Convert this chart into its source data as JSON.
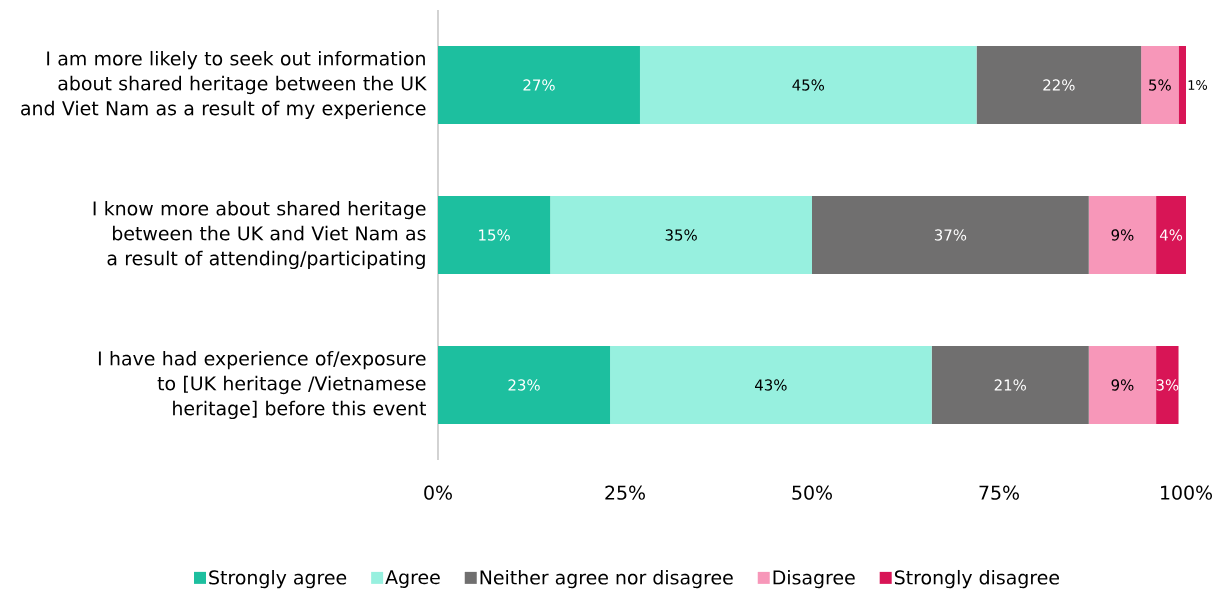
{
  "chart_data": {
    "type": "bar",
    "orientation": "horizontal",
    "stacked": true,
    "categories": [
      "I am more likely to seek out information about shared heritage between the UK and Viet Nam as a result of my experience",
      "I know more about shared heritage between the UK and Viet Nam as a result of attending/participating",
      "I have had experience of/exposure to [UK heritage /Vietnamese heritage] before this event"
    ],
    "series": [
      {
        "name": "Strongly agree",
        "color": "#1dbf9f",
        "values": [
          27,
          15,
          23
        ],
        "value_labels": [
          "27%",
          "15%",
          "23%"
        ]
      },
      {
        "name": "Agree",
        "color": "#97f0df",
        "values": [
          45,
          35,
          43
        ],
        "value_labels": [
          "45%",
          "35%",
          "43%"
        ]
      },
      {
        "name": "Neither agree nor disagree",
        "color": "#706f6f",
        "values": [
          22,
          37,
          21
        ],
        "value_labels": [
          "22%",
          "37%",
          "21%"
        ]
      },
      {
        "name": "Disagree",
        "color": "#f797b9",
        "values": [
          5,
          9,
          9
        ],
        "value_labels": [
          "5%",
          "9%",
          "9%"
        ]
      },
      {
        "name": "Strongly disagree",
        "color": "#d81556",
        "values": [
          1,
          4,
          3
        ],
        "value_labels": [
          "1%",
          "4%",
          "3%"
        ]
      }
    ],
    "xlim": [
      0,
      100
    ],
    "xticks": [
      {
        "value": 0,
        "label": "0%"
      },
      {
        "value": 25,
        "label": "25%"
      },
      {
        "value": 50,
        "label": "50%"
      },
      {
        "value": 75,
        "label": "75%"
      },
      {
        "value": 100,
        "label": "100%"
      }
    ],
    "legend": "bottom"
  }
}
